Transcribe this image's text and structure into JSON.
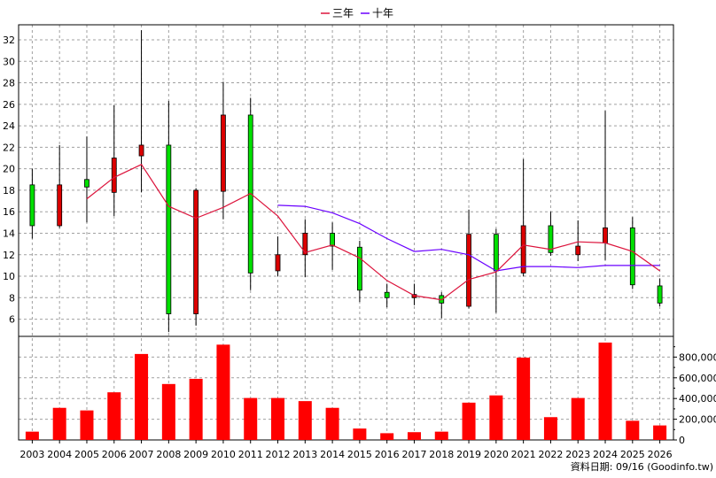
{
  "chart_data": {
    "type": "candlestick",
    "legend": [
      {
        "name": "三年",
        "color": "#dc143c"
      },
      {
        "name": "十年",
        "color": "#6a00ff"
      }
    ],
    "categories": [
      "2003",
      "2004",
      "2005",
      "2006",
      "2007",
      "2008",
      "2009",
      "2010",
      "2011",
      "2012",
      "2013",
      "2014",
      "2015",
      "2016",
      "2017",
      "2018",
      "2019",
      "2020",
      "2021",
      "2022",
      "2023",
      "2024",
      "2025",
      "2026"
    ],
    "price_axis": {
      "ticks": [
        6,
        8,
        10,
        12,
        14,
        16,
        18,
        20,
        22,
        24,
        26,
        28,
        30,
        32
      ],
      "range": [
        4.4,
        33.4
      ]
    },
    "volume_axis": {
      "ticks": [
        0,
        200000,
        400000,
        600000,
        800000
      ],
      "tick_labels": [
        "0",
        "200,000",
        "400,000",
        "600,000",
        "800,000"
      ],
      "range": [
        0,
        1000000
      ]
    },
    "candles": [
      {
        "open": 14.7,
        "close": 18.5,
        "high": 20.0,
        "low": 13.5
      },
      {
        "open": 18.5,
        "close": 14.7,
        "high": 22.2,
        "low": 14.5
      },
      {
        "open": 18.3,
        "close": 19.0,
        "high": 23.0,
        "low": 15.0
      },
      {
        "open": 21.0,
        "close": 17.8,
        "high": 25.9,
        "low": 15.6
      },
      {
        "open": 22.2,
        "close": 21.2,
        "high": 32.9,
        "low": 17.8
      },
      {
        "open": 6.5,
        "close": 22.2,
        "high": 26.3,
        "low": 4.8
      },
      {
        "open": 18.0,
        "close": 6.5,
        "high": 18.2,
        "low": 5.4
      },
      {
        "open": 25.0,
        "close": 17.9,
        "high": 28.1,
        "low": 15.3
      },
      {
        "open": 10.3,
        "close": 25.0,
        "high": 26.6,
        "low": 8.7
      },
      {
        "open": 12.0,
        "close": 10.5,
        "high": 13.7,
        "low": 10.0
      },
      {
        "open": 14.0,
        "close": 12.0,
        "high": 15.3,
        "low": 9.9
      },
      {
        "open": 12.8,
        "close": 14.0,
        "high": 15.0,
        "low": 10.6
      },
      {
        "open": 8.7,
        "close": 12.7,
        "high": 13.3,
        "low": 7.6
      },
      {
        "open": 8.0,
        "close": 8.5,
        "high": 9.3,
        "low": 7.1
      },
      {
        "open": 8.3,
        "close": 8.0,
        "high": 9.3,
        "low": 7.3
      },
      {
        "open": 7.5,
        "close": 8.2,
        "high": 8.5,
        "low": 6.1
      },
      {
        "open": 13.9,
        "close": 7.2,
        "high": 16.2,
        "low": 7.0
      },
      {
        "open": 10.5,
        "close": 13.9,
        "high": 14.4,
        "low": 6.6
      },
      {
        "open": 14.7,
        "close": 10.3,
        "high": 20.9,
        "low": 10.0
      },
      {
        "open": 12.2,
        "close": 14.7,
        "high": 16.0,
        "low": 11.9
      },
      {
        "open": 12.8,
        "close": 12.0,
        "high": 15.2,
        "low": 11.4
      },
      {
        "open": 14.5,
        "close": 13.1,
        "high": 25.4,
        "low": 11.5
      },
      {
        "open": 9.2,
        "close": 14.5,
        "high": 15.5,
        "low": 8.8
      },
      {
        "open": 7.5,
        "close": 9.1,
        "high": 9.8,
        "low": 7.2
      }
    ],
    "ma3": [
      null,
      null,
      17.2,
      19.2,
      20.4,
      16.5,
      15.4,
      16.4,
      17.7,
      15.6,
      12.2,
      12.9,
      11.7,
      9.6,
      8.2,
      7.8,
      9.7,
      10.4,
      12.9,
      12.5,
      13.2,
      13.1,
      12.3,
      10.5
    ],
    "ma10": [
      null,
      null,
      null,
      null,
      null,
      null,
      null,
      null,
      null,
      16.6,
      16.5,
      15.9,
      14.9,
      13.5,
      12.3,
      12.5,
      12.0,
      10.5,
      10.9,
      10.9,
      10.8,
      11.0,
      11.0,
      11.0
    ],
    "volumes": [
      80000,
      310000,
      285000,
      460000,
      830000,
      540000,
      590000,
      920000,
      405000,
      405000,
      375000,
      310000,
      110000,
      65000,
      75000,
      80000,
      360000,
      430000,
      795000,
      220000,
      405000,
      940000,
      185000,
      140000
    ],
    "source_note": "資料日期: 09/16 (Goodinfo.tw)",
    "colors": {
      "up": "#00e000",
      "down": "#dc0000",
      "volume": "#ff0000",
      "grid": "#a0a0a0"
    }
  }
}
